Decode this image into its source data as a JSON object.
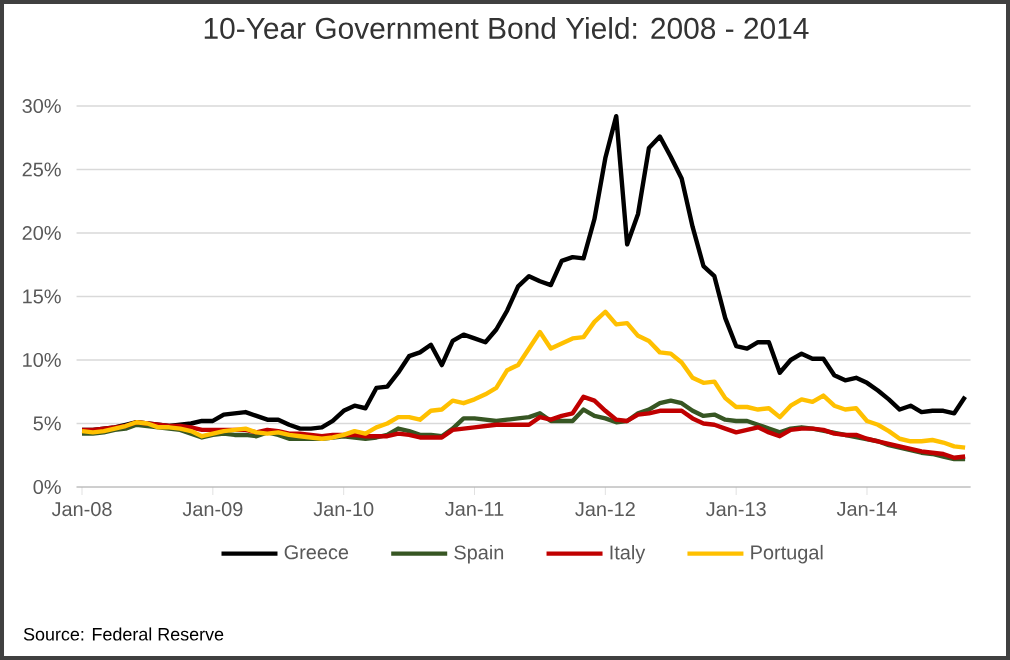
{
  "chart_data": {
    "type": "line",
    "title": "10-Year Government Bond Yield: 2008 - 2014",
    "annotations": [
      "Source: Federal Reserve"
    ],
    "categories": [
      "Jan-08",
      null,
      null,
      null,
      null,
      null,
      null,
      null,
      null,
      null,
      null,
      null,
      "Jan-09",
      null,
      null,
      null,
      null,
      null,
      null,
      null,
      null,
      null,
      null,
      null,
      "Jan-10",
      null,
      null,
      null,
      null,
      null,
      null,
      null,
      null,
      null,
      null,
      null,
      "Jan-11",
      null,
      null,
      null,
      null,
      null,
      null,
      null,
      null,
      null,
      null,
      null,
      "Jan-12",
      null,
      null,
      null,
      null,
      null,
      null,
      null,
      null,
      null,
      null,
      null,
      "Jan-13",
      null,
      null,
      null,
      null,
      null,
      null,
      null,
      null,
      null,
      null,
      null,
      "Jan-14",
      null,
      null,
      null,
      null,
      null,
      null,
      null,
      null,
      null
    ],
    "series": [
      {
        "name": "Greece",
        "color": "#000000",
        "values": [
          4.5,
          4.5,
          4.6,
          4.7,
          4.9,
          5.1,
          5.0,
          4.9,
          4.8,
          4.9,
          5.0,
          5.2,
          5.2,
          5.7,
          5.8,
          5.9,
          5.6,
          5.3,
          5.3,
          4.9,
          4.6,
          4.6,
          4.7,
          5.2,
          6.0,
          6.4,
          6.2,
          7.8,
          7.9,
          9.0,
          10.3,
          10.6,
          11.2,
          9.6,
          11.5,
          12.0,
          11.7,
          11.4,
          12.4,
          13.9,
          15.8,
          16.6,
          16.2,
          15.9,
          17.8,
          18.1,
          18.0,
          21.1,
          25.9,
          29.2,
          19.1,
          21.5,
          26.7,
          27.6,
          26.0,
          24.3,
          20.5,
          17.4,
          16.6,
          13.3,
          11.1,
          10.9,
          11.4,
          11.4,
          9.0,
          10.0,
          10.5,
          10.1,
          10.1,
          8.8,
          8.4,
          8.6,
          8.2,
          7.6,
          6.9,
          6.1,
          6.4,
          5.9,
          6.0,
          6.0,
          5.8,
          7.1
        ]
      },
      {
        "name": "Spain",
        "color": "#375623",
        "values": [
          4.2,
          4.2,
          4.3,
          4.5,
          4.6,
          4.9,
          4.8,
          4.7,
          4.6,
          4.5,
          4.2,
          3.9,
          4.1,
          4.2,
          4.1,
          4.1,
          4.0,
          4.3,
          4.1,
          3.8,
          3.8,
          3.8,
          3.8,
          3.9,
          4.0,
          3.9,
          3.8,
          3.9,
          4.1,
          4.6,
          4.4,
          4.1,
          4.1,
          4.0,
          4.6,
          5.4,
          5.4,
          5.3,
          5.2,
          5.3,
          5.4,
          5.5,
          5.8,
          5.2,
          5.2,
          5.2,
          6.1,
          5.6,
          5.4,
          5.1,
          5.2,
          5.8,
          6.1,
          6.6,
          6.8,
          6.6,
          6.0,
          5.6,
          5.7,
          5.3,
          5.2,
          5.2,
          4.9,
          4.6,
          4.3,
          4.6,
          4.7,
          4.6,
          null,
          null,
          null,
          null,
          null,
          3.6,
          3.3,
          3.1,
          2.9,
          2.7,
          2.6,
          2.4,
          2.2,
          2.2
        ]
      },
      {
        "name": "Italy",
        "color": "#c00000",
        "values": [
          4.5,
          4.5,
          4.6,
          4.7,
          4.8,
          5.1,
          5.0,
          4.9,
          4.8,
          4.8,
          4.7,
          4.5,
          4.5,
          4.5,
          4.5,
          4.5,
          4.3,
          4.5,
          4.4,
          4.2,
          4.2,
          4.1,
          4.0,
          4.1,
          4.1,
          4.1,
          4.0,
          4.0,
          4.0,
          4.2,
          4.1,
          3.9,
          3.9,
          3.9,
          4.5,
          4.6,
          4.7,
          4.8,
          4.9,
          4.9,
          4.9,
          4.9,
          5.5,
          5.3,
          5.6,
          5.8,
          7.1,
          6.8,
          6.0,
          5.3,
          5.2,
          5.7,
          5.8,
          6.0,
          6.0,
          6.0,
          5.4,
          5.0,
          4.9,
          4.6,
          4.3,
          4.5,
          4.7,
          4.3,
          4.0,
          4.5,
          4.6,
          4.6,
          4.5,
          4.2,
          4.1,
          4.1,
          3.8,
          3.6,
          3.4,
          3.2,
          3.0,
          2.8,
          2.7,
          2.6,
          2.3,
          2.4
        ]
      },
      {
        "name": "Portugal",
        "color": "#ffc000",
        "values": [
          4.4,
          4.3,
          4.4,
          4.6,
          4.8,
          5.1,
          5.0,
          4.7,
          4.7,
          4.6,
          4.4,
          4.0,
          4.2,
          4.4,
          4.5,
          4.6,
          4.3,
          4.2,
          4.3,
          4.1,
          4.0,
          3.9,
          3.8,
          3.9,
          4.1,
          4.4,
          4.2,
          4.7,
          5.0,
          5.5,
          5.5,
          5.3,
          6.0,
          6.1,
          6.8,
          6.6,
          6.9,
          7.3,
          7.8,
          9.2,
          9.6,
          10.9,
          12.2,
          10.9,
          11.3,
          11.7,
          11.8,
          13.0,
          13.8,
          12.8,
          12.9,
          11.9,
          11.5,
          10.6,
          10.5,
          9.8,
          8.6,
          8.2,
          8.3,
          7.0,
          6.3,
          6.3,
          6.1,
          6.2,
          5.5,
          6.4,
          6.9,
          6.7,
          7.2,
          6.4,
          6.1,
          6.2,
          5.2,
          4.9,
          4.4,
          3.8,
          3.6,
          3.6,
          3.7,
          3.5,
          3.2,
          3.1
        ]
      }
    ],
    "ylim": [
      0,
      30
    ],
    "yticks": [
      {
        "value": 0,
        "label": "0%"
      },
      {
        "value": 5,
        "label": "5%"
      },
      {
        "value": 10,
        "label": "10%"
      },
      {
        "value": 15,
        "label": "15%"
      },
      {
        "value": 20,
        "label": "20%"
      },
      {
        "value": 25,
        "label": "25%"
      },
      {
        "value": 30,
        "label": "30%"
      }
    ],
    "grid": "y",
    "legend": "bottom",
    "marker": "none",
    "line_style": "solid"
  }
}
